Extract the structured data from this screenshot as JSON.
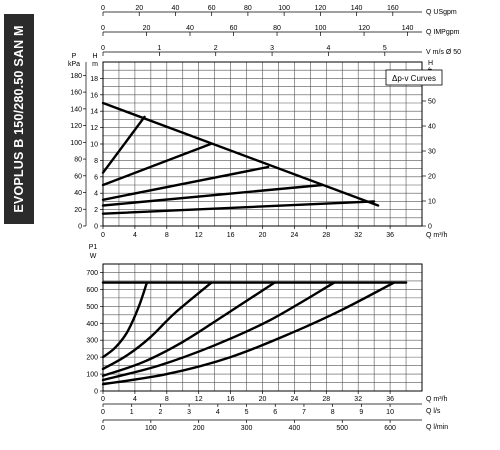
{
  "product_title": "EVOPLUS B 150/280.50 SAN M",
  "chart_data": [
    {
      "type": "line",
      "name_label": "Δp-v Curves",
      "x_axis": {
        "label": "Q m³/h",
        "ticks": [
          0,
          4,
          8,
          12,
          16,
          20,
          24,
          28,
          32,
          36
        ],
        "range": [
          0,
          40
        ]
      },
      "left_axis_p": {
        "label_top": "P",
        "label_unit": "kPa",
        "ticks": [
          0,
          20,
          40,
          60,
          80,
          100,
          120,
          140,
          160,
          180
        ],
        "range": [
          0,
          196
        ]
      },
      "left_axis_h": {
        "label_top": "H",
        "label_unit": "m",
        "ticks": [
          0,
          2,
          4,
          6,
          8,
          10,
          12,
          14,
          16,
          18
        ],
        "range": [
          0,
          20
        ]
      },
      "right_axis_h_ft": {
        "label_top": "H",
        "label_unit": "ft",
        "ticks": [
          0,
          10,
          20,
          30,
          40,
          50
        ],
        "range": [
          0,
          65.6
        ]
      },
      "top_axes": [
        {
          "label": "Q USgpm",
          "ticks": [
            0,
            20,
            40,
            60,
            80,
            100,
            120,
            140,
            160
          ],
          "factor": 4.403
        },
        {
          "label": "Q IMPgpm",
          "ticks": [
            0,
            20,
            40,
            60,
            80,
            100,
            120,
            140
          ],
          "factor": 3.666
        },
        {
          "label": "V m/s Ø 50",
          "ticks": [
            0,
            1,
            2,
            3,
            4,
            5
          ],
          "factor": 0.1415
        }
      ],
      "series": [
        {
          "points": [
            [
              0,
              15
            ],
            [
              34.5,
              2.5
            ]
          ]
        },
        {
          "points": [
            [
              0,
              6.5
            ],
            [
              5.2,
              13.3
            ]
          ]
        },
        {
          "points": [
            [
              0,
              5
            ],
            [
              13.5,
              10
            ]
          ]
        },
        {
          "points": [
            [
              0,
              3.2
            ],
            [
              20.7,
              7.2
            ]
          ]
        },
        {
          "points": [
            [
              0,
              2.5
            ],
            [
              27.5,
              5
            ]
          ]
        },
        {
          "points": [
            [
              0,
              1.5
            ],
            [
              34,
              3
            ]
          ]
        }
      ]
    },
    {
      "type": "line",
      "x_axis": {
        "label": "Q m³/h",
        "ticks": [
          0,
          4,
          8,
          12,
          16,
          20,
          24,
          28,
          32,
          36
        ],
        "range": [
          0,
          40
        ]
      },
      "y_axis": {
        "label_top": "P1",
        "label_unit": "W",
        "ticks": [
          0,
          100,
          200,
          300,
          400,
          500,
          600,
          700
        ],
        "range": [
          0,
          750
        ]
      },
      "bottom_axes": [
        {
          "label": "Q l/s",
          "ticks": [
            0,
            1,
            2,
            3,
            4,
            5,
            6,
            7,
            8,
            9,
            10
          ],
          "factor": 0.2778
        },
        {
          "label": "Q l/min",
          "ticks": [
            0,
            100,
            200,
            300,
            400,
            500,
            600
          ],
          "factor": 16.667
        }
      ],
      "series": [
        {
          "points": [
            [
              0,
              640
            ],
            [
              38,
              640
            ]
          ]
        },
        {
          "points": [
            [
              0,
              200
            ],
            [
              1.5,
              255
            ],
            [
              3,
              345
            ],
            [
              4.5,
              500
            ],
            [
              5.5,
              640
            ]
          ]
        },
        {
          "points": [
            [
              0,
              130
            ],
            [
              3,
              210
            ],
            [
              6,
              320
            ],
            [
              9,
              460
            ],
            [
              13.6,
              640
            ]
          ]
        },
        {
          "points": [
            [
              0,
              90
            ],
            [
              5,
              170
            ],
            [
              10,
              290
            ],
            [
              15,
              440
            ],
            [
              21.5,
              640
            ]
          ]
        },
        {
          "points": [
            [
              0,
              65
            ],
            [
              7,
              150
            ],
            [
              14,
              270
            ],
            [
              21,
              420
            ],
            [
              29,
              640
            ]
          ]
        },
        {
          "points": [
            [
              0,
              40
            ],
            [
              8,
              100
            ],
            [
              16,
              200
            ],
            [
              24,
              350
            ],
            [
              30,
              480
            ],
            [
              36.5,
              640
            ]
          ]
        }
      ]
    }
  ]
}
